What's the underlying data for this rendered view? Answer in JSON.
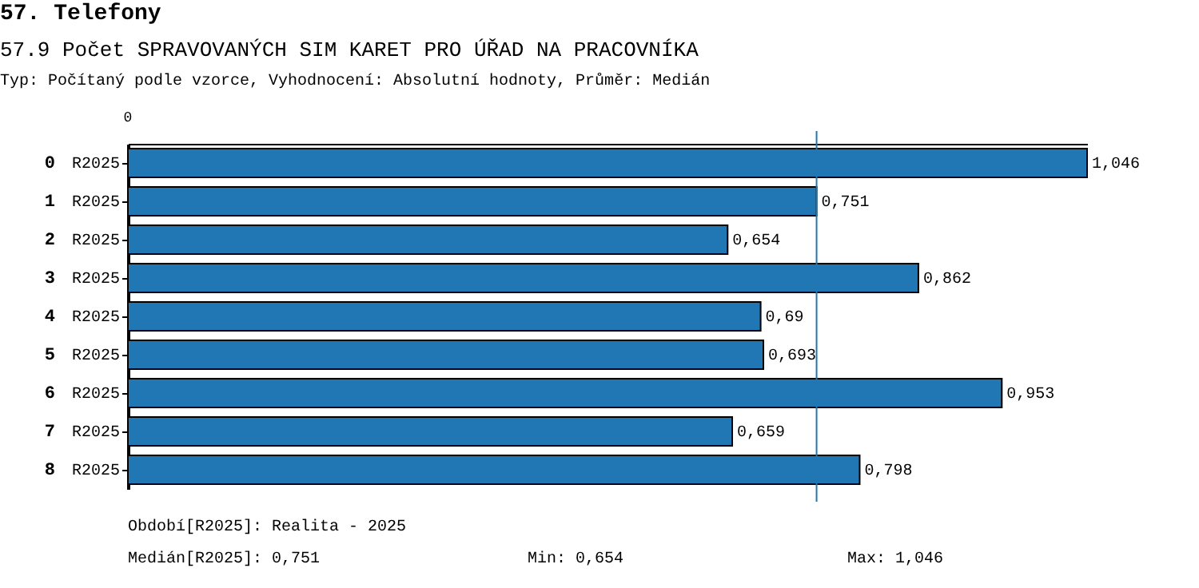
{
  "chart_data": {
    "type": "bar",
    "orientation": "horizontal",
    "title": "57. Telefony",
    "subtitle": "57.9 Počet SPRAVOVANÝCH SIM KARET PRO ÚŘAD NA PRACOVNÍKA",
    "categories": [
      "0",
      "1",
      "2",
      "3",
      "4",
      "5",
      "6",
      "7",
      "8"
    ],
    "series": [
      {
        "name": "R2025",
        "color": "#2077b4",
        "values": [
          1.046,
          0.751,
          0.654,
          0.862,
          0.69,
          0.693,
          0.953,
          0.659,
          0.798
        ],
        "value_labels": [
          "1,046",
          "0,751",
          "0,654",
          "0,862",
          "0,69",
          "0,693",
          "0,953",
          "0,659",
          "0,798"
        ]
      }
    ],
    "ref_lines": [
      {
        "axis": "x",
        "value": 0.751,
        "color": "#2077b4"
      }
    ],
    "annotations": [
      "0",
      "Typ: Počítaný podle vzorce, Vyhodnocení: Absolutní hodnoty, Průměr: Medián",
      "Období[R2025]: Realita - 2025",
      "Medián[R2025]: 0,751",
      "Min: 0,654",
      "Max: 1,046"
    ],
    "grid": false,
    "legend": "left"
  }
}
